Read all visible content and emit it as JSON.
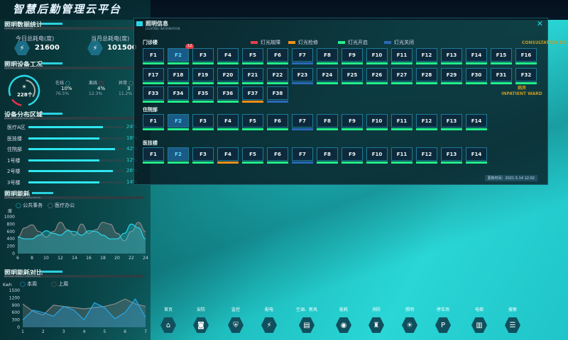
{
  "app_title": "智慧后勤管理云平台",
  "stats": {
    "title": "照明数据统计",
    "subtitle": "LIGHTING DATA STATISTICS",
    "today_label": "今日总耗电(度)",
    "today_value": "21600",
    "month_label": "当月总耗电(度)",
    "month_value": "101500"
  },
  "status": {
    "title": "照明设备工况",
    "subtitle": "LIGHTING CONDITIONS",
    "total": "228个",
    "items": [
      {
        "label": "在线",
        "value": "10%",
        "sub": "76.5%",
        "color": "#2ad6e6"
      },
      {
        "label": "离线",
        "value": "4%",
        "sub": "12.3%",
        "color": "#e8304a"
      },
      {
        "label": "异常",
        "value": "3",
        "sub": "11.2%",
        "color": "#888888"
      }
    ],
    "online_fraction": 0.765,
    "offline_fraction": 0.123
  },
  "distribution": {
    "title": "设备分布区域",
    "subtitle": "DEVICE DISTRIBUTION AREA",
    "rows": [
      {
        "label": "医疗A区",
        "pct": "24%",
        "fill": 0.78
      },
      {
        "label": "医技楼",
        "pct": "18%",
        "fill": 0.74
      },
      {
        "label": "住院部",
        "pct": "42%",
        "fill": 0.9
      },
      {
        "label": "1号楼",
        "pct": "12%",
        "fill": 0.74
      },
      {
        "label": "2号楼",
        "pct": "26%",
        "fill": 0.88
      },
      {
        "label": "3号楼",
        "pct": "14%",
        "fill": 0.74
      }
    ]
  },
  "chart_data": [
    {
      "type": "line",
      "title": "照明能耗",
      "subtitle": "LIGHTING ENERGY CONSUMPTION",
      "ylabel": "度",
      "ylim": [
        0,
        1000
      ],
      "yticks": [
        0,
        200,
        400,
        600,
        800,
        1000
      ],
      "xticks": [
        6,
        8,
        10,
        12,
        14,
        16,
        18,
        20,
        22,
        24
      ],
      "x": [
        6,
        7,
        8,
        9,
        10,
        11,
        12,
        13,
        14,
        15,
        16,
        17,
        18,
        19,
        20,
        21,
        22,
        23,
        24
      ],
      "series": [
        {
          "name": "公共事务",
          "color": "#2ad6e6",
          "values": [
            450,
            400,
            400,
            500,
            620,
            550,
            500,
            620,
            600,
            500,
            620,
            600,
            500,
            400,
            400,
            550,
            800,
            700,
            400
          ]
        },
        {
          "name": "医疗办公",
          "color": "#8a8a8a",
          "values": [
            450,
            700,
            780,
            600,
            450,
            600,
            850,
            650,
            500,
            800,
            550,
            650,
            850,
            800,
            550,
            350,
            600,
            850,
            600
          ]
        }
      ]
    },
    {
      "type": "area",
      "title": "照明能耗对比",
      "subtitle": "BUILDING ENERGY CONSUMPTION",
      "ylabel": "Kwh",
      "ylim": [
        0,
        1500
      ],
      "yticks": [
        0,
        300,
        600,
        900,
        1200,
        1500
      ],
      "xticks": [
        1,
        2,
        3,
        4,
        5,
        6,
        7
      ],
      "x": [
        1,
        1.5,
        2,
        2.5,
        3,
        3.5,
        4,
        4.5,
        5,
        5.5,
        6,
        6.5,
        7
      ],
      "series": [
        {
          "name": "本周",
          "color": "#2aa6e6",
          "values": [
            300,
            700,
            600,
            450,
            850,
            700,
            300,
            1000,
            800,
            350,
            600,
            1150,
            400
          ]
        },
        {
          "name": "上周",
          "color": "#8a8a8a",
          "values": [
            950,
            650,
            500,
            900,
            850,
            800,
            750,
            800,
            850,
            950,
            1150,
            950,
            850
          ]
        }
      ]
    }
  ],
  "modal": {
    "title": "照明信息",
    "subtitle": "LIGHTING INFORMATION",
    "legend": [
      {
        "label": "灯光故障",
        "color": "#e8404a"
      },
      {
        "label": "灯光检修",
        "color": "#f0901a"
      },
      {
        "label": "灯光开启",
        "color": "#22f08a"
      },
      {
        "label": "灯光关闭",
        "color": "#2a68b8"
      }
    ],
    "buildings": [
      {
        "name": "门诊楼",
        "floors": 38,
        "selected": "F2",
        "badge": "12",
        "status": {
          "F7": "off",
          "F23": "off",
          "F37": "repair",
          "F38": "off"
        }
      },
      {
        "name": "住院部",
        "floors": 14,
        "selected": "F2",
        "status": {
          "F7": "off"
        }
      },
      {
        "name": "医技楼",
        "floors": 14,
        "selected": "F2",
        "status": {
          "F4": "repair",
          "F7": "off"
        }
      }
    ],
    "update_time": "更新时间：2021.5.14 12:02"
  },
  "scene_labels": [
    {
      "cn": "",
      "en": "CONSULTATION RO"
    },
    {
      "cn": "病房",
      "en": "INPATIENT WARD"
    }
  ],
  "nav": [
    {
      "label": "首页",
      "icon": "home-icon",
      "g": "⌂"
    },
    {
      "label": "安防",
      "icon": "camera-icon",
      "g": "◙"
    },
    {
      "label": "监控",
      "icon": "shield-icon",
      "g": "⛨"
    },
    {
      "label": "配电",
      "icon": "lightning-icon",
      "g": "⚡"
    },
    {
      "label": "空调、新风",
      "icon": "air-conditioner-icon",
      "g": "▤"
    },
    {
      "label": "能耗",
      "icon": "energy-icon",
      "g": "◉"
    },
    {
      "label": "消防",
      "icon": "hydrant-icon",
      "g": "♜"
    },
    {
      "label": "照明",
      "icon": "bulb-icon",
      "g": "☀"
    },
    {
      "label": "停车场",
      "icon": "parking-icon",
      "g": "P"
    },
    {
      "label": "电梯",
      "icon": "elevator-icon",
      "g": "▥"
    },
    {
      "label": "搜索",
      "icon": "search-list-icon",
      "g": "☰"
    }
  ]
}
